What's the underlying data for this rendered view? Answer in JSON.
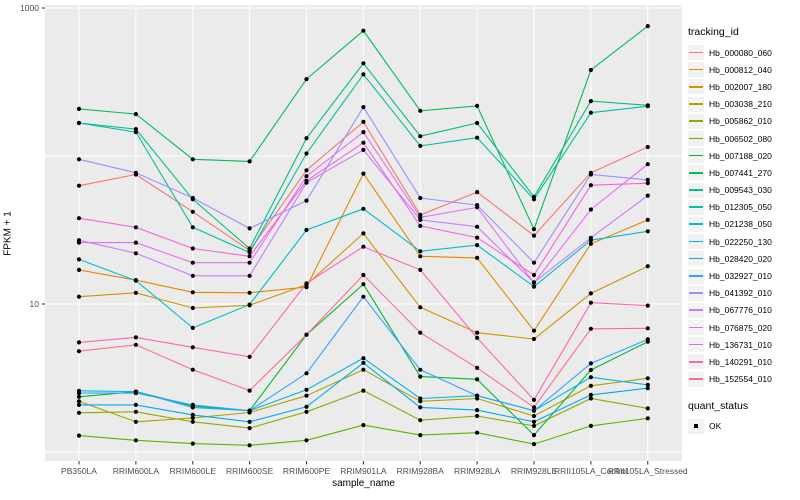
{
  "chart_data": {
    "type": "line",
    "title": "",
    "xlabel": "sample_name",
    "ylabel": "FPKM + 1",
    "y_scale": "log10",
    "panel_bg": "#EBEBEB",
    "grid_color": "#FFFFFF",
    "point_color": "#000000",
    "tick_label_color": "#4D4D4D",
    "y_ticks": [
      {
        "label": "1000",
        "value": 1000
      },
      {
        "label": "10",
        "value": 10
      }
    ],
    "y_gridlines": [
      1000,
      100,
      10,
      1
    ],
    "ylim": [
      1.05,
      1000
    ],
    "legend_position": "right",
    "categories": [
      "PB350LA",
      "RRIM600LA",
      "RRIM600LE",
      "RRIM600SE",
      "RRIM600PE",
      "RRIM901LA",
      "RRIM928BA",
      "RRIM928LA",
      "RRIM928LE",
      "RRII105LA_Control",
      "RRII105LA_Stressed"
    ],
    "series": [
      {
        "name": "Hb_000080_060",
        "color": "#F8766D",
        "values": [
          63,
          75,
          42,
          23,
          80,
          170,
          40,
          57,
          29,
          77,
          115
        ]
      },
      {
        "name": "Hb_000812_040",
        "color": "#E38900",
        "values": [
          17,
          14.5,
          12,
          11.9,
          13,
          76,
          21,
          20.5,
          6.6,
          25.5,
          37
        ]
      },
      {
        "name": "Hb_002007_180",
        "color": "#D09400",
        "values": [
          11.2,
          11.9,
          9.4,
          9.8,
          13.5,
          30,
          9.5,
          6.4,
          5.8,
          11.8,
          18
        ]
      },
      {
        "name": "Hb_003038_210",
        "color": "#B2A100",
        "values": [
          2.2,
          1.6,
          1.7,
          1.85,
          2.4,
          3.6,
          2.2,
          2.3,
          1.75,
          2.8,
          3.15
        ]
      },
      {
        "name": "Hb_005862_010",
        "color": "#8FAA00",
        "values": [
          1.84,
          1.87,
          1.6,
          1.45,
          1.87,
          2.6,
          1.64,
          1.75,
          1.5,
          2.3,
          1.97
        ]
      },
      {
        "name": "Hb_006502_080",
        "color": "#5CB300",
        "values": [
          1.29,
          1.2,
          1.14,
          1.11,
          1.2,
          1.52,
          1.3,
          1.35,
          1.13,
          1.5,
          1.69
        ]
      },
      {
        "name": "Hb_007188_020",
        "color": "#00B92F",
        "values": [
          2.36,
          2.56,
          2.05,
          1.9,
          6.2,
          13.6,
          3.23,
          3.1,
          1.3,
          3.58,
          5.56
        ]
      },
      {
        "name": "Hb_007441_270",
        "color": "#00BC59",
        "values": [
          208,
          192,
          95,
          92,
          331,
          703,
          202,
          218,
          32,
          381,
          755
        ]
      },
      {
        "name": "Hb_009543_030",
        "color": "#00BF80",
        "values": [
          167,
          152,
          51,
          23.7,
          132,
          423,
          136,
          167,
          53,
          235,
          220
        ]
      },
      {
        "name": "Hb_012305_050",
        "color": "#00C0A5",
        "values": [
          167,
          145,
          33,
          22.3,
          104,
          356,
          117,
          133,
          51,
          196,
          217
        ]
      },
      {
        "name": "Hb_021238_050",
        "color": "#00BDCD",
        "values": [
          20,
          14.4,
          6.9,
          9.9,
          31.6,
          44,
          22.7,
          25,
          13.1,
          27,
          31
        ]
      },
      {
        "name": "Hb_022250_130",
        "color": "#00B5E2",
        "values": [
          2.59,
          2.56,
          2.0,
          1.9,
          2.63,
          4.3,
          2.3,
          2.4,
          1.9,
          3.2,
          2.84
        ]
      },
      {
        "name": "Hb_028420_020",
        "color": "#00A9F2",
        "values": [
          2.08,
          2.08,
          1.78,
          1.6,
          2.02,
          4.0,
          2.0,
          1.92,
          1.6,
          2.43,
          2.7
        ]
      },
      {
        "name": "Hb_032927_010",
        "color": "#35A2FF",
        "values": [
          2.5,
          2.5,
          2.08,
          1.9,
          3.4,
          11.2,
          3.59,
          2.4,
          1.9,
          3.97,
          5.77
        ]
      },
      {
        "name": "Hb_041392_010",
        "color": "#9C8DFF",
        "values": [
          95,
          77,
          52,
          32.4,
          50,
          214,
          52,
          46.6,
          19,
          75,
          69
        ]
      },
      {
        "name": "Hb_067776_010",
        "color": "#C77CFF",
        "values": [
          27,
          22,
          15.5,
          15.5,
          66,
          110,
          37,
          33.3,
          14,
          28,
          54
        ]
      },
      {
        "name": "Hb_076875_020",
        "color": "#E36EF6",
        "values": [
          26,
          26,
          19,
          19,
          73,
          145,
          38.5,
          45,
          13.9,
          43.5,
          88
        ]
      },
      {
        "name": "Hb_136731_010",
        "color": "#F562DD",
        "values": [
          38,
          33,
          23.7,
          21,
          68,
          123,
          33.7,
          28.1,
          15.7,
          63.5,
          65.5
        ]
      },
      {
        "name": "Hb_140291_010",
        "color": "#FF63B6",
        "values": [
          5.5,
          5.95,
          5.1,
          4.4,
          13.8,
          24.4,
          17,
          5.9,
          2.25,
          10.2,
          9.75
        ]
      },
      {
        "name": "Hb_152554_010",
        "color": "#FF6C91",
        "values": [
          4.8,
          5.3,
          3.6,
          2.6,
          6.2,
          15.7,
          6.4,
          3.7,
          2.0,
          6.8,
          6.85
        ]
      }
    ]
  },
  "legend": {
    "tracking_title": "tracking_id",
    "quant_title": "quant_status",
    "quant_items": [
      {
        "label": "OK",
        "marker": "black-square-point"
      }
    ]
  }
}
